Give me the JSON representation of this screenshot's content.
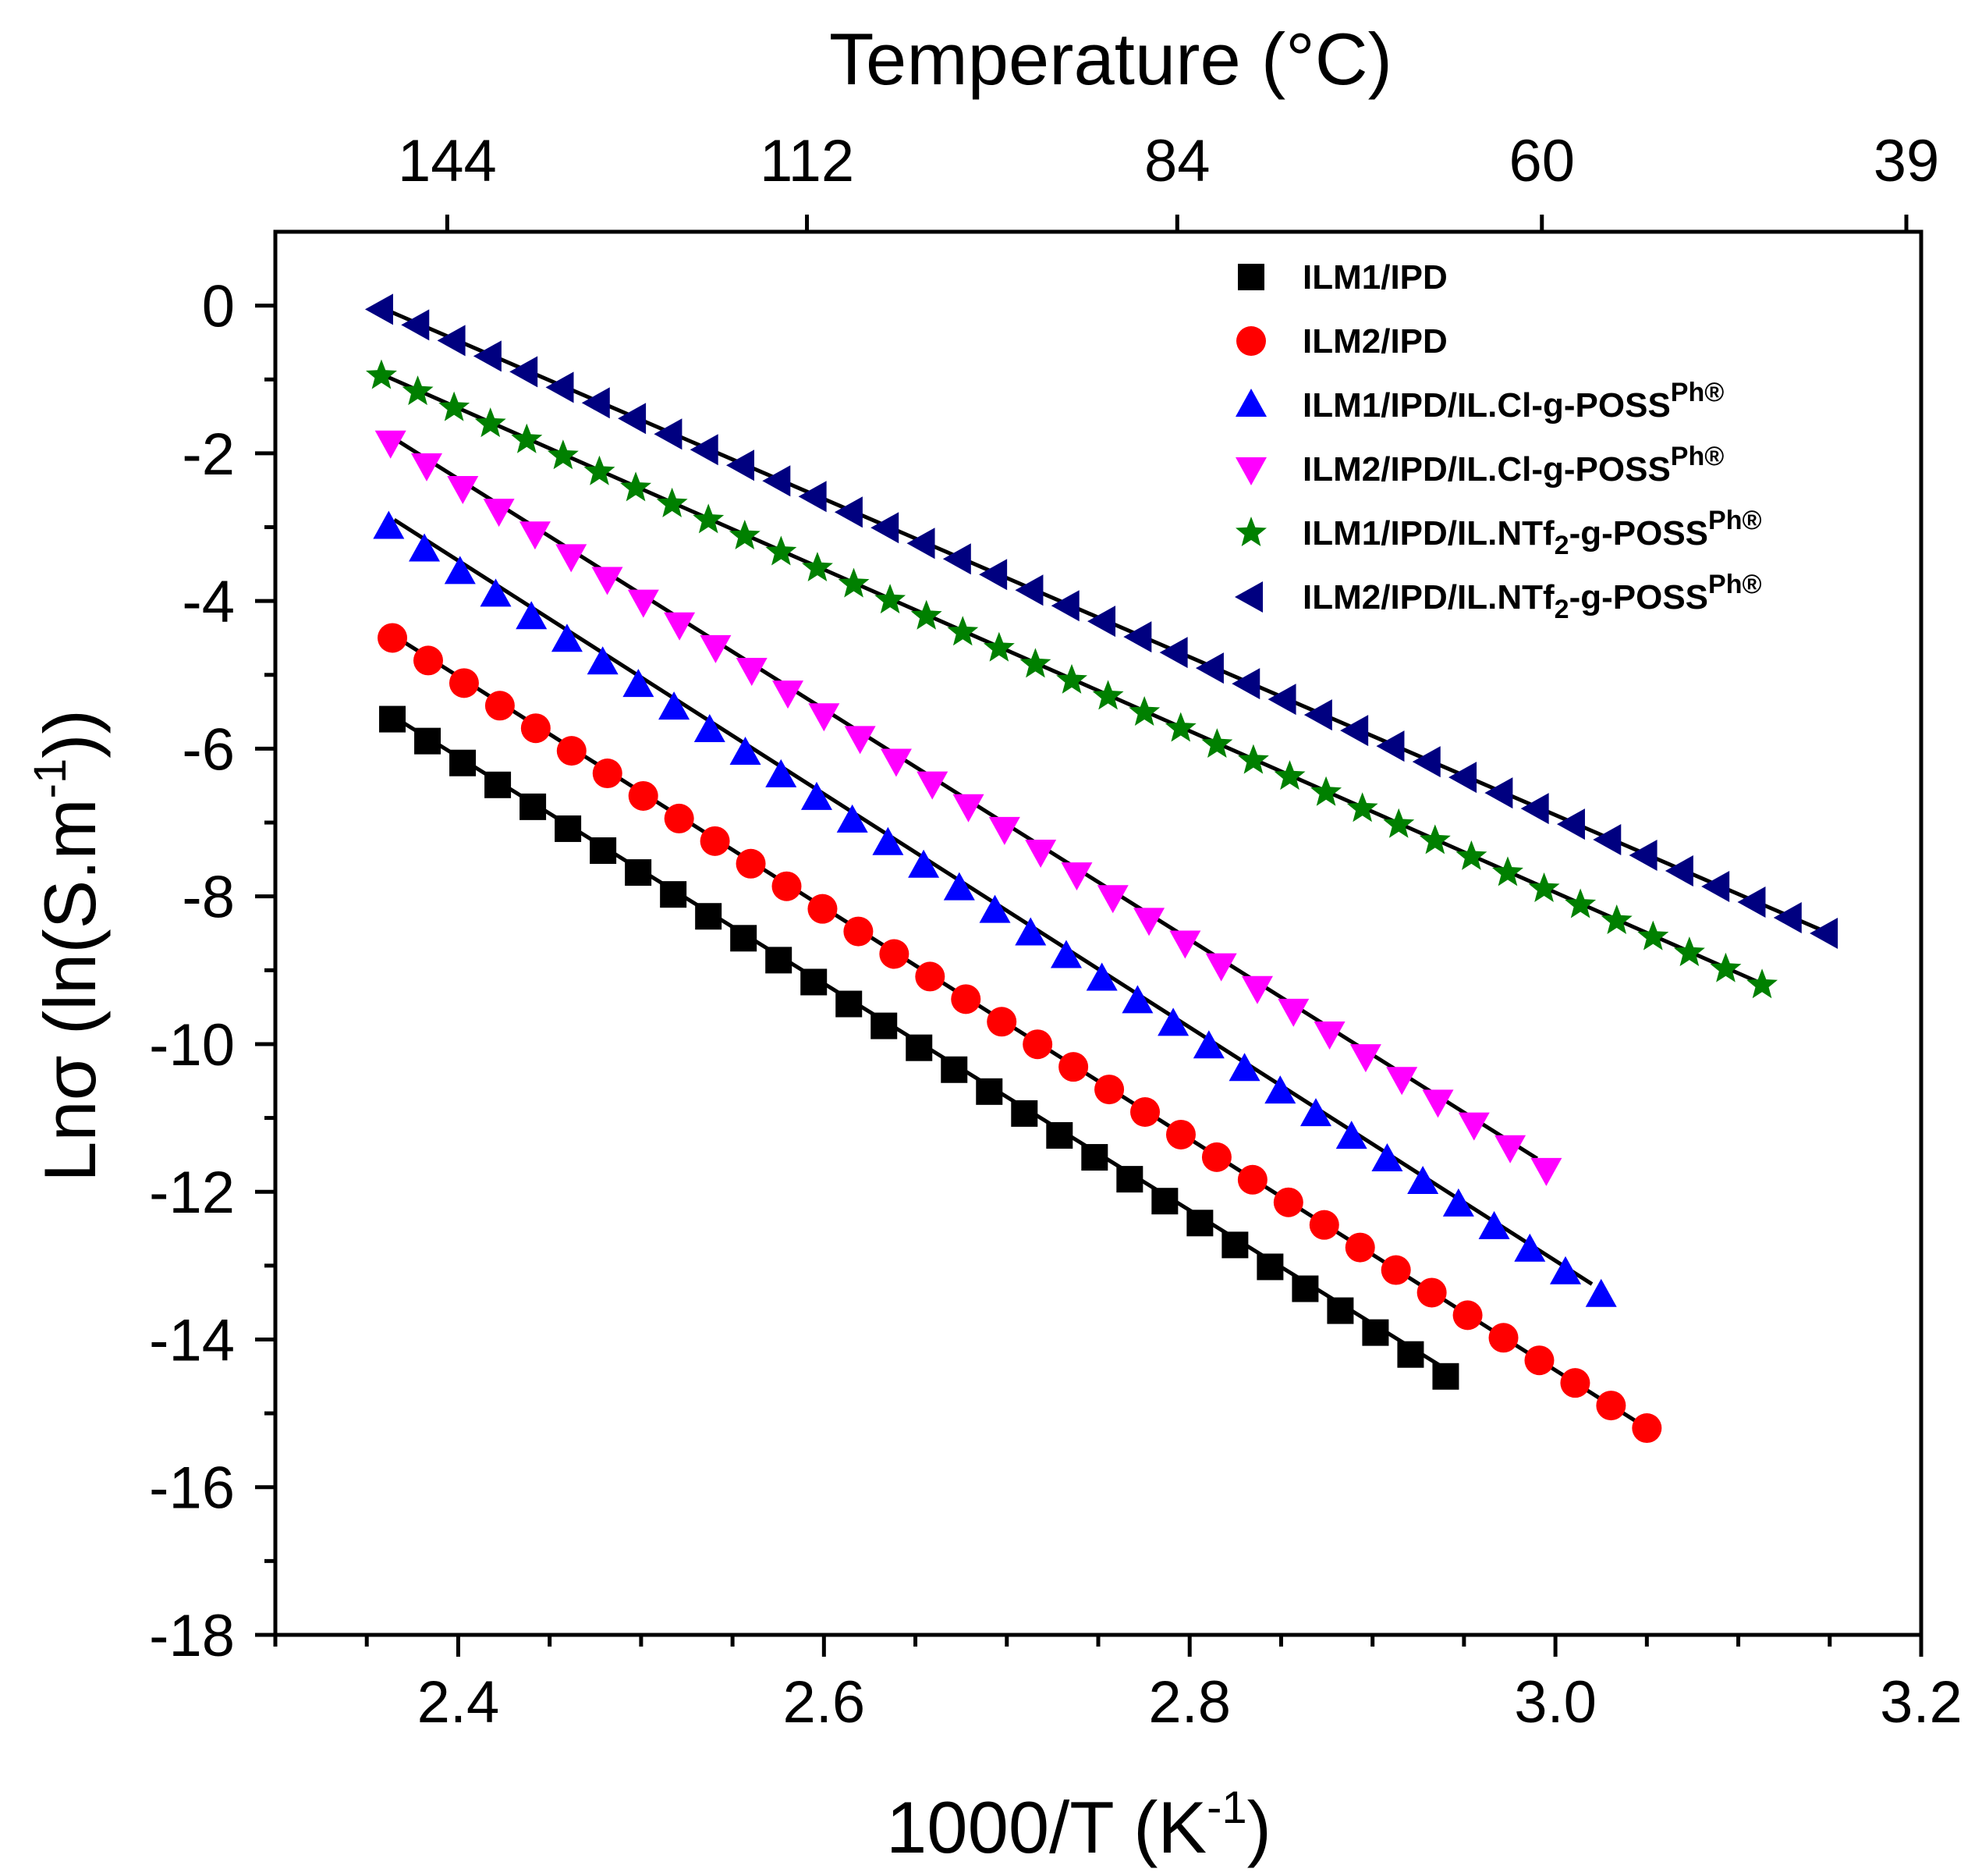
{
  "chart_data": {
    "type": "scatter",
    "title": "",
    "xlabel": "1000/T (K",
    "xlabel_sup": "-1",
    "xlabel_end": ")",
    "ylabel": "Lnσ (ln(S.m",
    "ylabel_sup": "-1",
    "ylabel_end": "))",
    "top_xlabel": "Temperature (°C)",
    "xlim": [
      2.3,
      3.2
    ],
    "ylim": [
      -18,
      1
    ],
    "xticks": [
      2.4,
      2.6,
      2.8,
      3.0,
      3.2
    ],
    "xtick_labels": [
      "2.4",
      "2.6",
      "2.8",
      "3.0",
      "3.2"
    ],
    "yticks": [
      0,
      -2,
      -4,
      -6,
      -8,
      -10,
      -12,
      -14,
      -16,
      -18
    ],
    "ytick_labels": [
      "0",
      "-2",
      "-4",
      "-6",
      "-8",
      "-10",
      "-12",
      "-14",
      "-16",
      "-18"
    ],
    "top_ticks": [
      {
        "label": "144",
        "x": 2.394
      },
      {
        "label": "112",
        "x": 2.5907
      },
      {
        "label": "84",
        "x": 2.7932
      },
      {
        "label": "60",
        "x": 2.9926
      },
      {
        "label": "39",
        "x": 3.1919
      }
    ],
    "legend_position": "top-right",
    "series": [
      {
        "name": "ILM1/IPD",
        "color": "#000000",
        "marker": "square",
        "x_start": 2.364,
        "x_end": 2.94,
        "n": 31,
        "y_start": -5.6,
        "y_end": -14.5,
        "fit": {
          "x": [
            2.37,
            2.94
          ],
          "y": [
            -5.65,
            -14.4
          ]
        }
      },
      {
        "name": "ILM2/IPD",
        "color": "#ff0000",
        "marker": "circle",
        "x_start": 2.364,
        "x_end": 3.05,
        "n": 36,
        "y_start": -4.5,
        "y_end": -15.2,
        "fit": {
          "x": [
            2.37,
            3.05
          ],
          "y": [
            -4.55,
            -15.2
          ]
        }
      },
      {
        "name": "ILM1/IPD/IL.Cl-g-POSS",
        "name_sup": "Ph®",
        "color": "#0000ff",
        "marker": "triangle-up",
        "x_start": 2.362,
        "x_end": 3.025,
        "n": 35,
        "y_start": -3.0,
        "y_end": -13.4,
        "fit": {
          "x": [
            2.365,
            3.02
          ],
          "y": [
            -2.9,
            -13.25
          ]
        }
      },
      {
        "name": " ILM2/IPD/IL.Cl-g-POSS",
        "name_sup": "Ph®",
        "color": "#ff00ff",
        "marker": "triangle-down",
        "x_start": 2.363,
        "x_end": 2.995,
        "n": 33,
        "y_start": -1.85,
        "y_end": -11.7,
        "fit": {
          "x": [
            2.365,
            2.99
          ],
          "y": [
            -1.8,
            -11.55
          ]
        }
      },
      {
        "name": "ILM1/IPD/IL.NTf",
        "name_sub": "2",
        "name_end": "-g-POSS",
        "name_sup": "Ph®",
        "color": "#008000",
        "marker": "star",
        "x_start": 2.358,
        "x_end": 3.113,
        "n": 39,
        "y_start": -0.95,
        "y_end": -9.2,
        "fit": {
          "x": [
            2.36,
            3.11
          ],
          "y": [
            -0.95,
            -9.15
          ]
        }
      },
      {
        "name": "ILM2/IPD/IL.NTf",
        "name_sub": "2",
        "name_end": "-g-POSS",
        "name_sup": "Ph®",
        "color": "#000080",
        "marker": "triangle-left",
        "x_start": 2.358,
        "x_end": 3.148,
        "n": 41,
        "y_start": -0.05,
        "y_end": -8.5,
        "fit": {
          "x": [
            2.36,
            3.145
          ],
          "y": [
            -0.05,
            -8.45
          ]
        }
      }
    ]
  }
}
